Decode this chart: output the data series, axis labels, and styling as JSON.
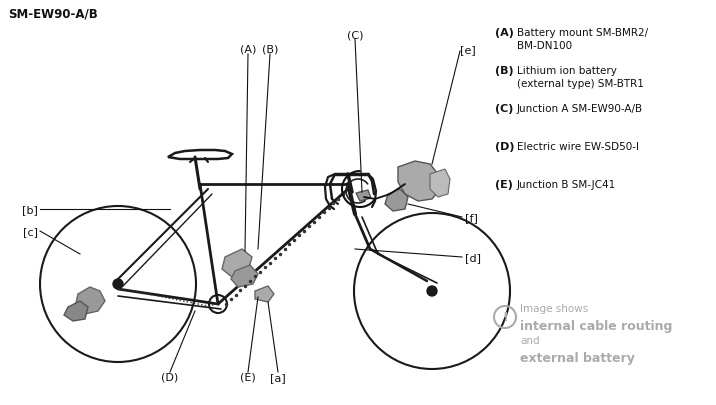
{
  "title": "SM-EW90-A/B",
  "background_color": "#ffffff",
  "legend_items": [
    {
      "label": "(A)",
      "desc": "Battery mount SM-BMR2/\nBM-DN100"
    },
    {
      "label": "(B)",
      "desc": "Lithium ion battery\n(external type) SM-BTR1"
    },
    {
      "label": "(C)",
      "desc": "Junction A SM-EW90-A/B"
    },
    {
      "label": "(D)",
      "desc": "Electric wire EW-SD50-I"
    },
    {
      "label": "(E)",
      "desc": "Junction B SM-JC41"
    }
  ],
  "notice_line1": "Image shows",
  "notice_line2": "internal cable routing",
  "notice_line3": "and",
  "notice_line4": "external battery",
  "bike_color": "#1a1a1a",
  "gray_color": "#888888",
  "light_gray": "#aaaaaa",
  "ann_color": "#111111",
  "notice_color": "#aaaaaa"
}
